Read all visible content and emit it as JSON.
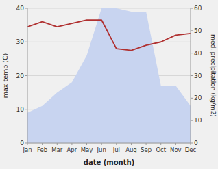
{
  "chart_data": {
    "type": "line",
    "categories": [
      "Jan",
      "Feb",
      "Mar",
      "Apr",
      "May",
      "Jun",
      "Jul",
      "Aug",
      "Sep",
      "Oct",
      "Nov",
      "Dec"
    ],
    "series": [
      {
        "type": "area",
        "color": "#c8d4f0",
        "values": [
          9,
          11,
          15,
          18,
          26,
          40,
          40,
          39,
          39,
          17,
          17,
          11
        ]
      },
      {
        "type": "line",
        "color": "#b03030",
        "values": [
          34.5,
          36.0,
          34.5,
          35.5,
          36.5,
          36.5,
          28.0,
          27.5,
          29.0,
          30.0,
          32.0,
          32.5
        ]
      }
    ],
    "x_label": "date (month)",
    "y_label": "max temp (C)",
    "y2_label": "med. precipitation (kg/m2)",
    "ylim": [
      0,
      40
    ],
    "yticks": [
      0,
      10,
      20,
      30,
      40
    ],
    "y2lim": [
      0,
      60
    ],
    "y2ticks": [
      0,
      10,
      20,
      30,
      40,
      50,
      60
    ],
    "grid": true
  }
}
